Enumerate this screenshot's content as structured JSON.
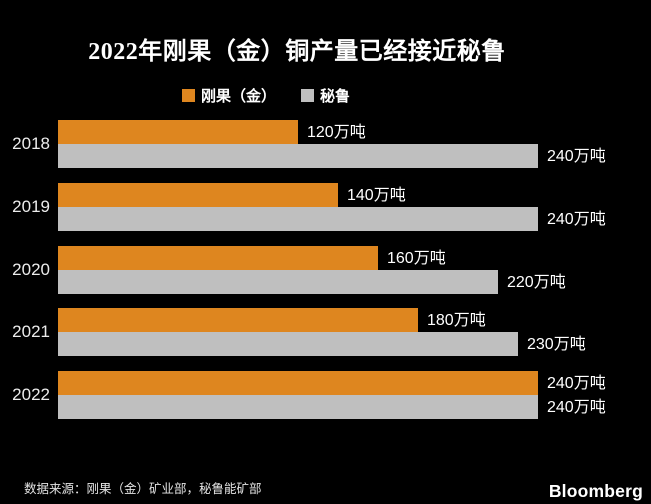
{
  "chart": {
    "title": "2022年刚果（金）铜产量已经接近秘鲁",
    "legend": [
      {
        "name": "刚果（金）",
        "color": "#DE861F"
      },
      {
        "name": "秘鲁",
        "color": "#BFBFBF"
      }
    ],
    "source": "数据来源：刚果（金）矿业部，秘鲁能矿部",
    "logo": "Bloomberg"
  },
  "chart_data": {
    "type": "bar",
    "orientation": "horizontal",
    "title": "2022年刚果（金）铜产量已经接近秘鲁",
    "categories": [
      "2018",
      "2019",
      "2020",
      "2021",
      "2022"
    ],
    "series": [
      {
        "name": "刚果（金）",
        "color": "#DE861F",
        "values": [
          120,
          140,
          160,
          180,
          240
        ],
        "labels": [
          "120万吨",
          "140万吨",
          "160万吨",
          "180万吨",
          "240万吨"
        ]
      },
      {
        "name": "秘鲁",
        "color": "#BFBFBF",
        "values": [
          240,
          240,
          220,
          230,
          240
        ],
        "labels": [
          "240万吨",
          "240万吨",
          "220万吨",
          "230万吨",
          "240万吨"
        ]
      }
    ],
    "unit": "万吨",
    "xlim": [
      0,
      240
    ],
    "grid": false,
    "legend_position": "top",
    "value_labels": "outside-end"
  }
}
